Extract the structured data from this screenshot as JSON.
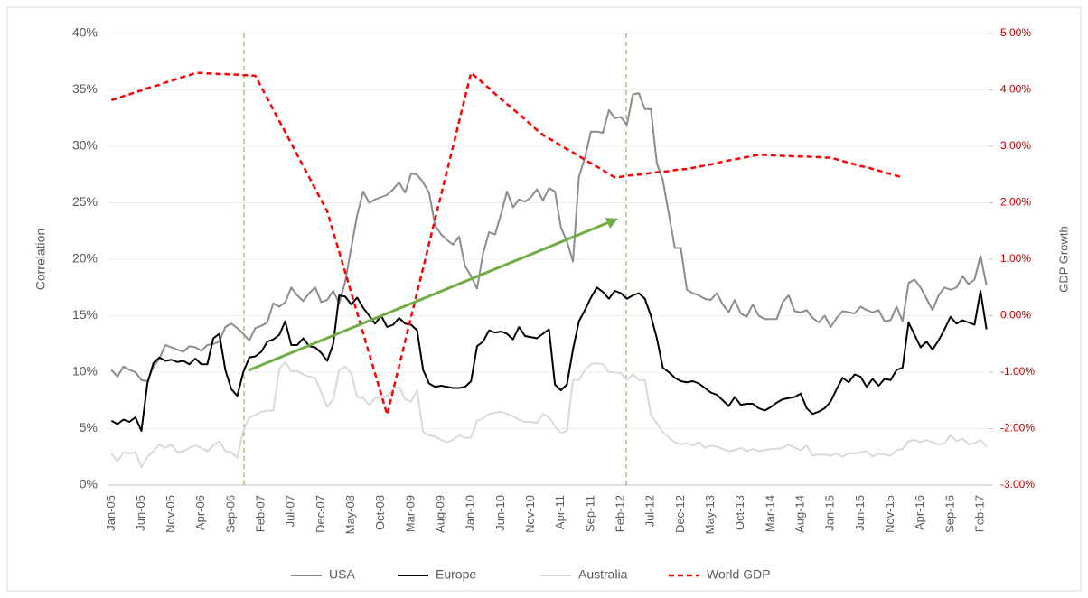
{
  "chart_data": {
    "type": "line",
    "y_label": "Correlation",
    "y2_label": "GDP Growth",
    "categories": [
      "Jan-05",
      null,
      null,
      null,
      null,
      "Jun-05",
      null,
      null,
      null,
      null,
      "Nov-05",
      null,
      null,
      null,
      null,
      "Apr-06",
      null,
      null,
      null,
      null,
      "Sep-06",
      null,
      null,
      null,
      null,
      "Feb-07",
      null,
      null,
      null,
      null,
      "Jul-07",
      null,
      null,
      null,
      null,
      "Dec-07",
      null,
      null,
      null,
      null,
      "May-08",
      null,
      null,
      null,
      null,
      "Oct-08",
      null,
      null,
      null,
      null,
      "Mar-09",
      null,
      null,
      null,
      null,
      "Aug-09",
      null,
      null,
      null,
      null,
      "Jan-10",
      null,
      null,
      null,
      null,
      "Jun-10",
      null,
      null,
      null,
      null,
      "Nov-10",
      null,
      null,
      null,
      null,
      "Apr-11",
      null,
      null,
      null,
      null,
      "Sep-11",
      null,
      null,
      null,
      null,
      "Feb-12",
      null,
      null,
      null,
      null,
      "Jul-12",
      null,
      null,
      null,
      null,
      "Dec-12",
      null,
      null,
      null,
      null,
      "May-13",
      null,
      null,
      null,
      null,
      "Oct-13",
      null,
      null,
      null,
      null,
      "Mar-14",
      null,
      null,
      null,
      null,
      "Aug-14",
      null,
      null,
      null,
      null,
      "Jan-15",
      null,
      null,
      null,
      null,
      "Jun-15",
      null,
      null,
      null,
      null,
      "Nov-15",
      null,
      null,
      null,
      null,
      "Apr-16",
      null,
      null,
      null,
      null,
      "Sep-16",
      null,
      null,
      null,
      null,
      "Feb-17",
      null
    ],
    "series": [
      {
        "name": "USA",
        "color": "#8c8c8c",
        "dash": false,
        "values": [
          10.2,
          9.6,
          10.5,
          10.2,
          10.0,
          9.3,
          9.2,
          10.5,
          11.2,
          12.4,
          12.2,
          12.0,
          11.8,
          12.3,
          12.2,
          11.9,
          12.4,
          12.5,
          12.7,
          14.0,
          14.3,
          13.9,
          13.4,
          12.8,
          13.9,
          14.1,
          14.4,
          16.1,
          15.8,
          16.2,
          17.5,
          16.8,
          16.3,
          17.0,
          17.5,
          16.2,
          16.4,
          17.2,
          16.1,
          18.0,
          21.0,
          23.9,
          26.0,
          25.0,
          25.3,
          25.5,
          25.7,
          26.2,
          26.8,
          25.9,
          27.6,
          27.5,
          26.8,
          25.9,
          23.0,
          22.2,
          21.7,
          21.3,
          22.0,
          19.4,
          18.5,
          17.4,
          20.5,
          22.4,
          22.2,
          24.0,
          26.0,
          24.6,
          25.3,
          25.1,
          25.5,
          26.2,
          25.2,
          26.3,
          26.0,
          22.8,
          21.6,
          19.8,
          27.3,
          29.0,
          31.3,
          31.3,
          31.2,
          33.2,
          32.5,
          32.6,
          31.9,
          34.6,
          34.7,
          33.3,
          33.3,
          28.5,
          27.0,
          24.0,
          21.0,
          21.0,
          17.3,
          17.0,
          16.8,
          16.5,
          16.4,
          17.0,
          16.0,
          15.3,
          16.4,
          15.2,
          14.9,
          16.0,
          15.0,
          14.7,
          14.7,
          14.7,
          16.2,
          16.8,
          15.4,
          15.3,
          15.5,
          14.8,
          14.4,
          15.0,
          14.0,
          14.8,
          15.4,
          15.3,
          15.2,
          15.8,
          15.5,
          15.3,
          15.5,
          14.5,
          14.6,
          15.8,
          14.5,
          17.9,
          18.2,
          17.5,
          16.5,
          15.5,
          16.8,
          17.5,
          17.3,
          17.5,
          18.5,
          17.8,
          18.2,
          20.3,
          17.7
        ]
      },
      {
        "name": "Europe",
        "color": "#000000",
        "dash": false,
        "values": [
          5.7,
          5.4,
          5.8,
          5.6,
          6.0,
          4.8,
          9.0,
          10.8,
          11.3,
          11.0,
          11.1,
          10.9,
          11.0,
          10.7,
          11.2,
          10.7,
          10.7,
          13.0,
          13.4,
          10.2,
          8.5,
          7.9,
          10.0,
          11.3,
          11.4,
          11.8,
          12.7,
          12.9,
          13.3,
          14.5,
          12.4,
          12.4,
          13.0,
          12.3,
          12.2,
          11.7,
          11.0,
          12.5,
          16.8,
          16.7,
          16.0,
          16.6,
          15.7,
          15.0,
          14.3,
          15.0,
          14.0,
          14.2,
          14.8,
          14.3,
          14.2,
          13.7,
          10.2,
          9.0,
          8.7,
          8.8,
          8.7,
          8.6,
          8.6,
          8.7,
          9.2,
          12.3,
          12.7,
          13.7,
          13.5,
          13.6,
          13.4,
          12.9,
          14.0,
          13.2,
          13.1,
          13.0,
          13.4,
          13.8,
          8.9,
          8.4,
          8.9,
          12.0,
          14.5,
          15.5,
          16.6,
          17.5,
          17.1,
          16.5,
          17.2,
          17.0,
          16.5,
          16.8,
          17.0,
          16.5,
          15.0,
          13.0,
          10.4,
          10.0,
          9.5,
          9.2,
          9.1,
          9.2,
          9.0,
          8.6,
          8.2,
          8.0,
          7.5,
          7.0,
          7.8,
          7.1,
          7.2,
          7.2,
          6.8,
          6.6,
          6.9,
          7.3,
          7.6,
          7.7,
          7.8,
          8.1,
          6.8,
          6.3,
          6.5,
          6.8,
          7.4,
          8.5,
          9.5,
          9.1,
          9.8,
          9.6,
          8.7,
          9.4,
          8.8,
          9.4,
          9.3,
          10.2,
          10.4,
          14.4,
          13.3,
          12.2,
          12.7,
          12.0,
          12.8,
          13.8,
          14.9,
          14.3,
          14.6,
          14.4,
          14.2,
          17.2,
          13.8
        ]
      },
      {
        "name": "Australia",
        "color": "#d9d9d9",
        "dash": false,
        "values": [
          2.8,
          2.1,
          2.9,
          2.8,
          2.9,
          1.6,
          2.5,
          3.0,
          3.6,
          3.3,
          3.6,
          2.9,
          3.0,
          3.3,
          3.5,
          3.3,
          3.0,
          3.5,
          3.9,
          3.0,
          2.9,
          2.4,
          4.8,
          6.0,
          6.2,
          6.5,
          6.6,
          6.6,
          10.3,
          10.9,
          10.1,
          10.1,
          9.8,
          9.6,
          9.5,
          8.2,
          6.9,
          7.6,
          10.2,
          10.5,
          9.9,
          7.8,
          7.7,
          7.1,
          7.7,
          7.8,
          7.9,
          8.5,
          8.7,
          7.6,
          7.4,
          8.4,
          4.7,
          4.4,
          4.3,
          4.0,
          3.8,
          4.0,
          4.4,
          4.2,
          4.2,
          5.7,
          5.9,
          6.3,
          6.4,
          6.5,
          6.3,
          6.1,
          5.8,
          5.6,
          5.6,
          5.5,
          6.3,
          6.0,
          5.2,
          4.6,
          4.8,
          9.3,
          9.3,
          10.2,
          10.7,
          10.8,
          10.7,
          10.0,
          10.0,
          9.9,
          9.3,
          9.8,
          9.3,
          9.3,
          6.2,
          5.5,
          4.7,
          4.2,
          3.8,
          3.6,
          3.7,
          3.5,
          3.8,
          3.3,
          3.5,
          3.4,
          3.2,
          3.0,
          3.1,
          3.3,
          3.0,
          3.2,
          3.0,
          3.1,
          3.2,
          3.2,
          3.3,
          3.6,
          3.3,
          3.1,
          3.5,
          2.6,
          2.7,
          2.7,
          2.6,
          2.8,
          2.5,
          2.8,
          2.8,
          2.9,
          3.0,
          2.5,
          2.8,
          2.7,
          2.6,
          3.1,
          3.2,
          3.9,
          4.0,
          3.8,
          4.0,
          3.8,
          3.6,
          3.7,
          4.4,
          3.9,
          4.1,
          3.6,
          3.7,
          4.0,
          3.4
        ]
      },
      {
        "name": "World GDP",
        "color": "#ff0000",
        "dash": true,
        "axis": "y2",
        "values": [
          3.82,
          3.85,
          3.89,
          3.92,
          3.96,
          3.99,
          4.03,
          4.06,
          4.09,
          4.13,
          4.16,
          4.2,
          4.23,
          4.26,
          4.3,
          4.3,
          4.29,
          4.29,
          4.28,
          4.28,
          4.27,
          4.27,
          4.26,
          4.26,
          4.25,
          4.05,
          3.85,
          3.65,
          3.45,
          3.25,
          3.05,
          2.85,
          2.65,
          2.45,
          2.25,
          2.05,
          1.85,
          1.49,
          1.13,
          0.77,
          0.41,
          0.05,
          -0.31,
          -0.67,
          -1.03,
          -1.39,
          -1.75,
          -1.32,
          -0.89,
          -0.45,
          -0.02,
          0.41,
          0.84,
          1.28,
          1.71,
          2.14,
          2.57,
          3.0,
          3.44,
          3.87,
          4.3,
          4.21,
          4.12,
          4.03,
          3.93,
          3.84,
          3.75,
          3.66,
          3.57,
          3.48,
          3.38,
          3.29,
          3.2,
          3.14,
          3.08,
          3.01,
          2.95,
          2.89,
          2.83,
          2.76,
          2.7,
          2.64,
          2.58,
          2.51,
          2.45,
          2.46,
          2.48,
          2.49,
          2.5,
          2.51,
          2.53,
          2.54,
          2.55,
          2.56,
          2.58,
          2.59,
          2.6,
          2.62,
          2.64,
          2.66,
          2.68,
          2.7,
          2.73,
          2.75,
          2.77,
          2.79,
          2.81,
          2.83,
          2.85,
          2.85,
          2.84,
          2.84,
          2.83,
          2.83,
          2.82,
          2.82,
          2.82,
          2.81,
          2.81,
          2.8,
          2.8,
          2.77,
          2.74,
          2.71,
          2.68,
          2.65,
          2.63,
          2.6,
          2.57,
          2.54,
          2.51,
          2.48,
          2.45,
          null,
          null,
          null,
          null,
          null,
          null,
          null,
          null,
          null,
          null,
          null,
          null,
          null,
          null
        ]
      }
    ],
    "ylim": [
      0,
      40
    ],
    "yticks": [
      {
        "value": 0,
        "label": "0%"
      },
      {
        "value": 5,
        "label": "5%"
      },
      {
        "value": 10,
        "label": "10%"
      },
      {
        "value": 15,
        "label": "15%"
      },
      {
        "value": 20,
        "label": "20%"
      },
      {
        "value": 25,
        "label": "25%"
      },
      {
        "value": 30,
        "label": "30%"
      },
      {
        "value": 35,
        "label": "35%"
      },
      {
        "value": 40,
        "label": "40%"
      }
    ],
    "y2lim": [
      -3,
      5
    ],
    "y2ticks": [
      {
        "value": -3,
        "label": "-3.00%"
      },
      {
        "value": -2,
        "label": "-2.00%"
      },
      {
        "value": -1,
        "label": "-1.00%"
      },
      {
        "value": 0,
        "label": "0.00%"
      },
      {
        "value": 1,
        "label": "1.00%"
      },
      {
        "value": 2,
        "label": "2.00%"
      },
      {
        "value": 3,
        "label": "3.00%"
      },
      {
        "value": 4,
        "label": "4.00%"
      },
      {
        "value": 5,
        "label": "5.00%"
      }
    ],
    "grid": true,
    "legend": "bottom"
  }
}
